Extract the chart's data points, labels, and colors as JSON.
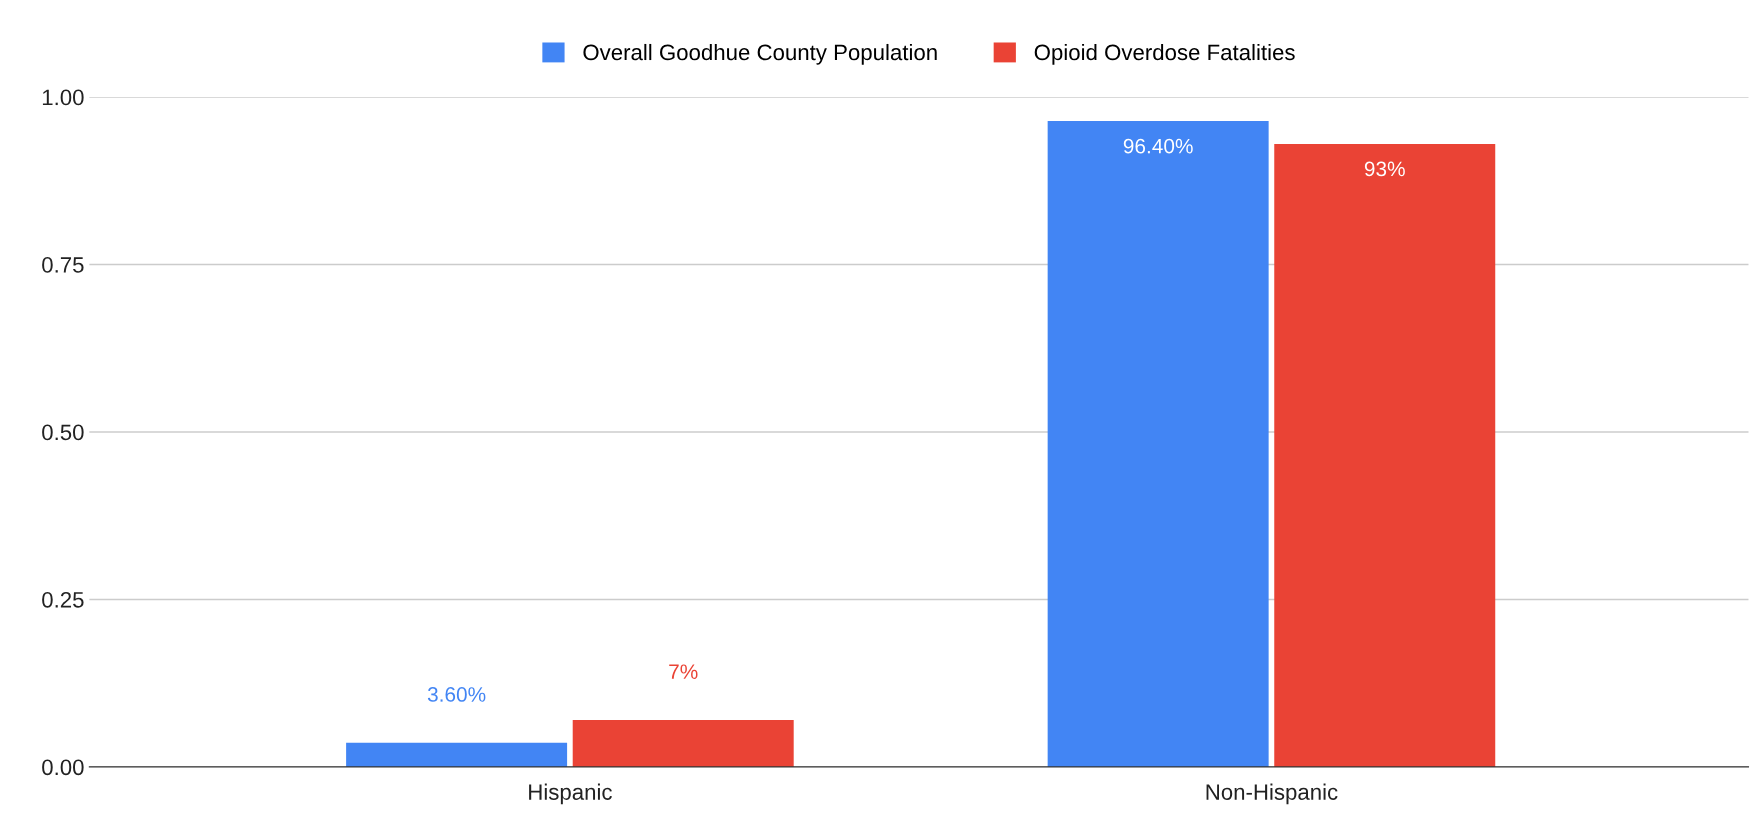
{
  "chart_data": {
    "type": "bar",
    "categories": [
      "Hispanic",
      "Non-Hispanic"
    ],
    "series": [
      {
        "name": "Overall Goodhue County Population",
        "color": "#4285f4",
        "values": [
          0.036,
          0.964
        ],
        "value_labels": [
          "3.60%",
          "96.40%"
        ]
      },
      {
        "name": "Opioid Overdose Fatalities",
        "color": "#ea4335",
        "values": [
          0.07,
          0.93
        ],
        "value_labels": [
          "7%",
          "93%"
        ]
      }
    ],
    "ylim": [
      0,
      1
    ],
    "yticks": [
      {
        "value": 0,
        "label": "0.00"
      },
      {
        "value": 0.25,
        "label": "0.25"
      },
      {
        "value": 0.5,
        "label": "0.50"
      },
      {
        "value": 0.75,
        "label": "0.75"
      },
      {
        "value": 1,
        "label": "1.00"
      }
    ],
    "grid": "y",
    "legend": "top"
  }
}
